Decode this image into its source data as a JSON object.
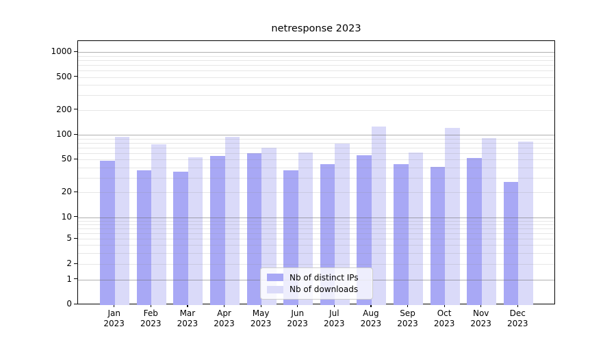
{
  "title": "netresponse 2023",
  "chart_data": {
    "type": "bar",
    "title": "netresponse 2023",
    "categories": [
      "Jan 2023",
      "Feb 2023",
      "Mar 2023",
      "Apr 2023",
      "May 2023",
      "Jun 2023",
      "Jul 2023",
      "Aug 2023",
      "Sep 2023",
      "Oct 2023",
      "Nov 2023",
      "Dec 2023"
    ],
    "series": [
      {
        "name": "Nb of distinct IPs",
        "color": "#a8a8f5",
        "values": [
          48,
          37,
          36,
          55,
          60,
          37,
          44,
          56,
          44,
          41,
          52,
          27
        ]
      },
      {
        "name": "Nb of downloads",
        "color": "#dadaf9",
        "values": [
          94,
          77,
          53,
          94,
          70,
          61,
          78,
          125,
          61,
          121,
          91,
          83
        ]
      }
    ],
    "xlabel": "",
    "ylabel": "",
    "yscale": "symlog",
    "yticks": [
      1000,
      500,
      200,
      100,
      50,
      20,
      10,
      5,
      2,
      1,
      0
    ],
    "ylim": [
      0,
      1400
    ],
    "grid": "horizontal major at powers of 10, light log minors",
    "legend_position": "lower center"
  },
  "colors": {
    "background": "#ffffff",
    "axis": "#000000",
    "text": "#000000",
    "major_grid": "rgba(110,110,110,0.55)",
    "minor_grid": "rgba(140,140,140,0.22)",
    "legend_border": "#cccccc",
    "legend_background": "rgba(255,255,255,0.8)"
  }
}
